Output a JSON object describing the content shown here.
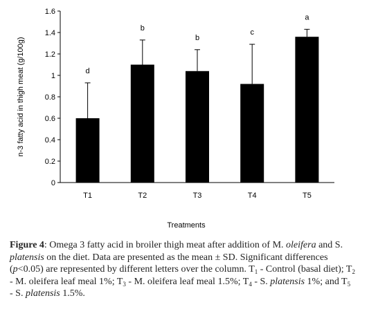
{
  "chart_data": {
    "type": "bar",
    "categories": [
      "T1",
      "T2",
      "T3",
      "T4",
      "T5"
    ],
    "values": [
      0.6,
      1.1,
      1.04,
      0.92,
      1.36
    ],
    "errors": [
      0.33,
      0.23,
      0.2,
      0.37,
      0.07
    ],
    "significance_letters": [
      "d",
      "b",
      "b",
      "c",
      "a"
    ],
    "ylabel": "n-3 fatty acid in thigh meat  (g/100g)",
    "xlabel": "Treatments",
    "ylim": [
      0,
      1.6
    ],
    "yticks": [
      0,
      0.2,
      0.4,
      0.6,
      0.8,
      1,
      1.2,
      1.4,
      1.6
    ],
    "ytick_labels": [
      "0",
      "0.2",
      "0.4",
      "0.6",
      "0.8",
      "1",
      "1.2",
      "1.4",
      "1.6"
    ],
    "bar_color": "#000000",
    "grid": false
  },
  "caption": {
    "label": "Figure 4",
    "p1": ": Omega 3 fatty acid in broiler thigh meat after addition of M. ",
    "i1": "oleifera",
    "p2": " and S. ",
    "i2": "platensis",
    "p3": " on the diet. Data are presented as the mean ± SD. Significant differences (",
    "i3": "p",
    "p4": "<0.05) are represented by different letters over the column. T",
    "s1": "1",
    "p5": " - Control (basal diet); T",
    "s2": "2",
    "p6": " - M. oleifera leaf meal 1%; T",
    "s3": "3",
    "p7": " - M. oleifera leaf meal 1.5%; T",
    "s4": "4",
    "p8": " - S. ",
    "i4": "platensis",
    "p9": " 1%; and T",
    "s5": "5",
    "p10": " - S. ",
    "i5": "platensis",
    "p11": " 1.5%."
  }
}
